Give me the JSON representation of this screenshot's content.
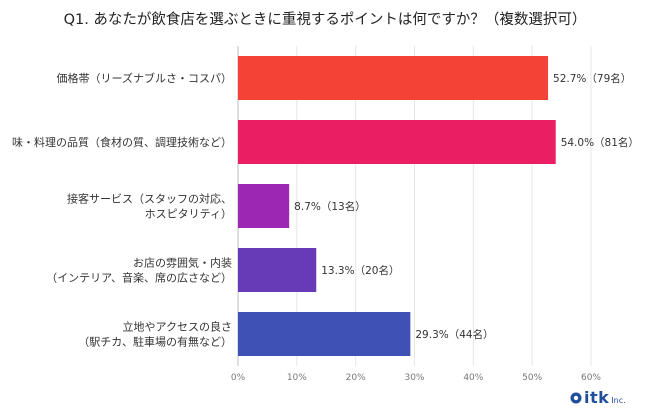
{
  "title": "Q1. あなたが飲食店を選ぶときに重視するポイントは何ですか？（複数選択可）",
  "logo": {
    "text": "itk",
    "sub": "Inc."
  },
  "chart_data": {
    "type": "bar",
    "orientation": "horizontal",
    "categories": [
      [
        "価格帯（リーズナブルさ・コスパ）"
      ],
      [
        "味・料理の品質（食材の質、調理技術など）"
      ],
      [
        "接客サービス（スタッフの対応、",
        "ホスピタリティ）"
      ],
      [
        "お店の雰囲気・内装",
        "（インテリア、音楽、席の広さなど）"
      ],
      [
        "立地やアクセスの良さ",
        "（駅チカ、駐車場の有無など）"
      ]
    ],
    "values": [
      52.7,
      54.0,
      8.7,
      13.3,
      29.3
    ],
    "value_labels": [
      "52.7%（79名）",
      "54.0%（81名）",
      "8.7%（13名）",
      "13.3%（20名）",
      "29.3%（44名）"
    ],
    "colors": [
      "#f44336",
      "#e91e63",
      "#9c27b0",
      "#673ab7",
      "#3f51b5"
    ],
    "xlim": [
      0,
      60
    ],
    "xticks": [
      "0%",
      "10%",
      "20%",
      "30%",
      "40%",
      "50%",
      "60%"
    ],
    "grid": true
  }
}
